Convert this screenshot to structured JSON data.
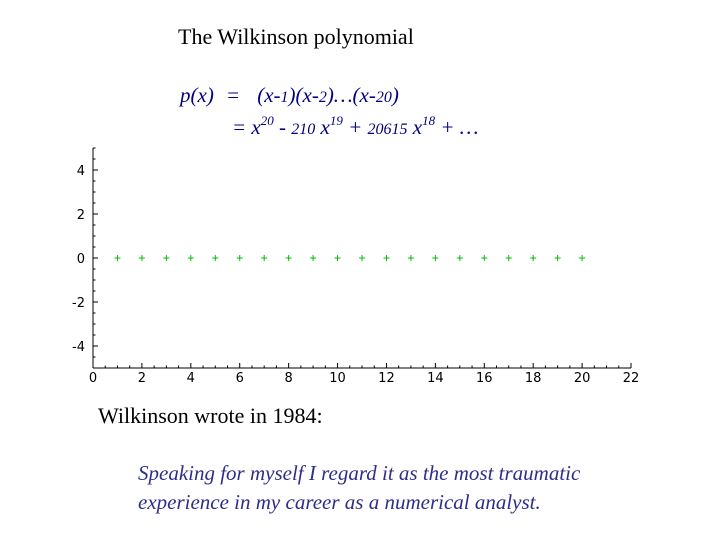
{
  "title": "The Wilkinson polynomial",
  "formula": {
    "lhs": "p(x)",
    "eq1": "=",
    "product": {
      "f1a": "(x-",
      "f1n": "1",
      "f1b": ")",
      "f2a": "(x-",
      "f2n": "2",
      "f2b": ")",
      "dots": "…",
      "f3a": "(x-",
      "f3n": "20",
      "f3b": ")"
    },
    "eq2": "=",
    "expansion": {
      "t1": "x",
      "t1e": "20",
      "op1": " - ",
      "c2": "210",
      "t2": " x",
      "t2e": "19",
      "op2": " + ",
      "c3": "20615",
      "t3": " x",
      "t3e": "18",
      "tail": " + …"
    }
  },
  "chart_data": {
    "type": "scatter",
    "marker": "+",
    "marker_color": "#00c000",
    "x": [
      1,
      2,
      3,
      4,
      5,
      6,
      7,
      8,
      9,
      10,
      11,
      12,
      13,
      14,
      15,
      16,
      17,
      18,
      19,
      20
    ],
    "y": [
      0,
      0,
      0,
      0,
      0,
      0,
      0,
      0,
      0,
      0,
      0,
      0,
      0,
      0,
      0,
      0,
      0,
      0,
      0,
      0
    ],
    "xlim": [
      0,
      22
    ],
    "ylim": [
      -5,
      5
    ],
    "xticks": [
      "0",
      "2",
      "4",
      "6",
      "8",
      "10",
      "12",
      "14",
      "16",
      "18",
      "20",
      "22"
    ],
    "yticks": [
      "4",
      "2",
      "0",
      "-2",
      "-4"
    ],
    "xtick_values": [
      0,
      2,
      4,
      6,
      8,
      10,
      12,
      14,
      16,
      18,
      20,
      22
    ],
    "ytick_values": [
      4,
      2,
      0,
      -2,
      -4
    ],
    "grid": false
  },
  "quote_intro": "Wilkinson wrote in 1984:",
  "quote": {
    "line1": "Speaking for myself I regard it as the most traumatic",
    "line2": "experience in my career as a numerical analyst."
  }
}
